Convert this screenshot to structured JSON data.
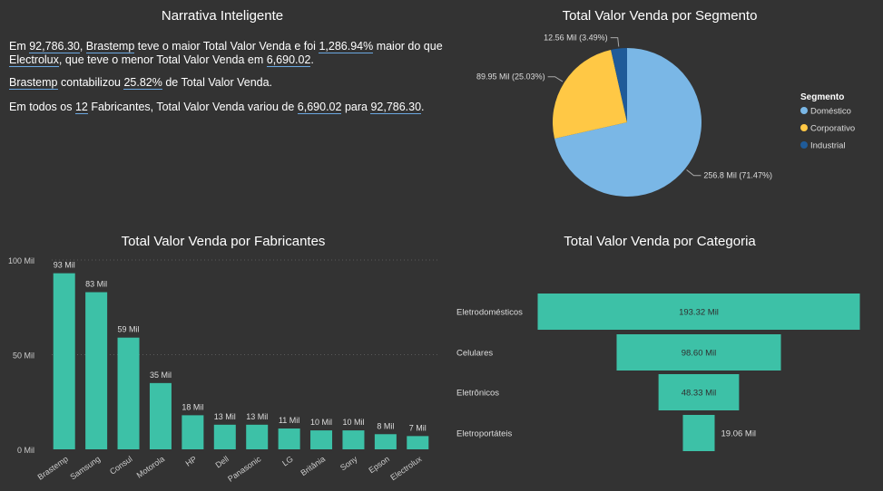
{
  "narrative": {
    "title": "Narrativa Inteligente",
    "p1": {
      "t1": "Em ",
      "v1": "92,786.30",
      "t2": ", ",
      "v2": "Brastemp",
      "t3": " teve o maior Total Valor Venda e foi ",
      "v3": "1,286.94%",
      "t4": " maior do que",
      "v4": "Electrolux",
      "t5": ", que teve o menor Total Valor Venda em ",
      "v5": "6,690.02",
      "t6": "."
    },
    "p2": {
      "v1": "Brastemp",
      "t1": " contabilizou ",
      "v2": "25.82%",
      "t2": " de Total Valor Venda."
    },
    "p3": {
      "t1": "Em todos os ",
      "v1": "12",
      "t2": " Fabricantes, Total Valor Venda variou de ",
      "v2": "6,690.02",
      "t3": " para ",
      "v3": "92,786.30",
      "t4": "."
    }
  },
  "colors": {
    "teal": "#3dc1a7",
    "domestico": "#7ab7e6",
    "corporativo": "#ffc845",
    "industrial": "#1f5b99",
    "background": "#333333"
  },
  "chart_data": [
    {
      "type": "pie",
      "title": "Total Valor Venda por Segmento",
      "legend_title": "Segmento",
      "legend_position": "right",
      "slices": [
        {
          "name": "Doméstico",
          "value": 256.8,
          "label": "256.8 Mil (71.47%)",
          "color": "#7ab7e6"
        },
        {
          "name": "Corporativo",
          "value": 89.95,
          "label": "89.95 Mil (25.03%)",
          "color": "#ffc845"
        },
        {
          "name": "Industrial",
          "value": 12.56,
          "label": "12.56 Mil (3.49%)",
          "color": "#1f5b99"
        }
      ]
    },
    {
      "type": "bar",
      "title": "Total Valor Venda por Fabricantes",
      "categories": [
        "Brastemp",
        "Samsung",
        "Consul",
        "Motorola",
        "HP",
        "Dell",
        "Panasonic",
        "LG",
        "Britânia",
        "Sony",
        "Epson",
        "Electrolux"
      ],
      "values": [
        93,
        83,
        59,
        35,
        18,
        13,
        13,
        11,
        10,
        10,
        8,
        7
      ],
      "labels": [
        "93 Mil",
        "83 Mil",
        "59 Mil",
        "35 Mil",
        "18 Mil",
        "13 Mil",
        "13 Mil",
        "11 Mil",
        "10 Mil",
        "10 Mil",
        "8 Mil",
        "7 Mil"
      ],
      "yticks": [
        "0 Mil",
        "50 Mil",
        "100 Mil"
      ],
      "ylim": [
        0,
        100
      ],
      "grid": true
    },
    {
      "type": "bar",
      "title": "Total Valor Venda por Categoria",
      "categories": [
        "Eletrodomésticos",
        "Celulares",
        "Eletrônicos",
        "Eletroportáteis"
      ],
      "values": [
        193.32,
        98.6,
        48.33,
        19.06
      ],
      "labels": [
        "193.32 Mil",
        "98.60 Mil",
        "48.33 Mil",
        "19.06 Mil"
      ]
    }
  ]
}
